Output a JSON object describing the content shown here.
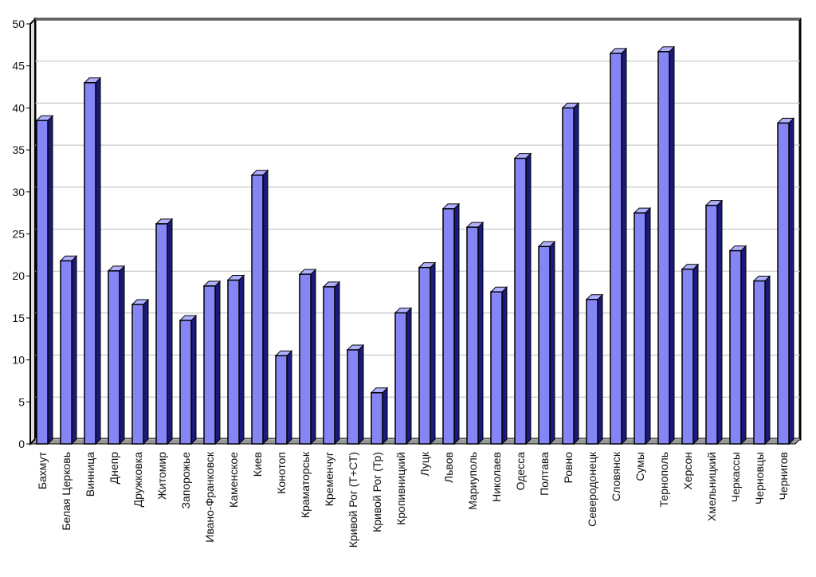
{
  "chart_data": {
    "type": "bar3d",
    "categories": [
      "Бахмут",
      "Белая Церковь",
      "Винница",
      "Днепр",
      "Дружковка",
      "Житомир",
      "Запорожье",
      "Ивано-Франковск",
      "Каменское",
      "Киев",
      "Конотоп",
      "Краматорськ",
      "Кременчуг",
      "Кривой Рог (Т+СТ)",
      "Кривой Рог (Тр)",
      "Кропивницкий",
      "Луцк",
      "Львов",
      "Мариуполь",
      "Николаев",
      "Одесса",
      "Полтава",
      "Ровно",
      "Северодонецк",
      "Словянск",
      "Сумы",
      "Тернополь",
      "Херсон",
      "Хмельницкий",
      "Черкассы",
      "Черновцы",
      "Чернигов"
    ],
    "values": [
      38.5,
      21.8,
      43,
      20.6,
      16.6,
      26.2,
      14.7,
      18.8,
      19.5,
      32,
      10.5,
      20.2,
      18.7,
      11.2,
      6.1,
      15.6,
      21,
      28,
      25.8,
      18.1,
      34,
      23.5,
      40,
      17.2,
      46.5,
      27.5,
      46.7,
      20.8,
      28.4,
      23,
      19.4,
      38.2
    ],
    "color": "#8585f5",
    "ylim": [
      0,
      50
    ],
    "yticks": [
      0,
      5,
      10,
      15,
      20,
      25,
      30,
      35,
      40,
      45,
      50
    ],
    "grid": true
  }
}
